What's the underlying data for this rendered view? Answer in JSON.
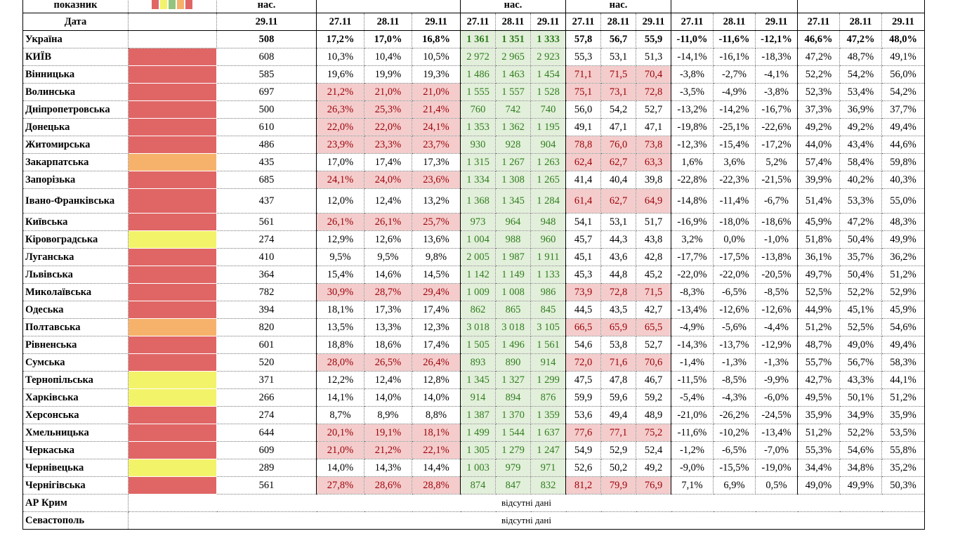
{
  "header": {
    "labels": [
      "показник",
      "нас.",
      "нас.",
      "нас."
    ],
    "date_label": "Дата",
    "date": "29.11",
    "dates": [
      "27.11",
      "28.11",
      "29.11"
    ]
  },
  "rows": [
    {
      "name": "Україна",
      "value": "508",
      "cells": [
        "17,2%",
        "17,0%",
        "16,8%",
        "1 361",
        "1 351",
        "1 333",
        "57,8",
        "56,7",
        "55,9",
        "-11,0%",
        "-11,6%",
        "-12,1%",
        "46,6%",
        "47,2%",
        "48,0%"
      ],
      "bold": true,
      "highlight": [
        false,
        true,
        false,
        false,
        false
      ]
    },
    {
      "name": "КИЇВ",
      "value": "608",
      "cells": [
        "10,3%",
        "10,4%",
        "10,5%",
        "2 972",
        "2 965",
        "2 923",
        "55,3",
        "53,1",
        "51,3",
        "-14,1%",
        "-16,1%",
        "-18,3%",
        "47,2%",
        "48,7%",
        "49,1%"
      ],
      "status": "#e06666",
      "highlight": [
        false,
        true,
        false,
        false,
        false
      ]
    },
    {
      "name": "Вінницька",
      "value": "585",
      "cells": [
        "19,6%",
        "19,9%",
        "19,3%",
        "1 486",
        "1 463",
        "1 454",
        "71,1",
        "71,5",
        "70,4",
        "-3,8%",
        "-2,7%",
        "-4,1%",
        "52,2%",
        "54,2%",
        "56,0%"
      ],
      "status": "#e06666",
      "highlight": [
        false,
        true,
        true,
        false,
        false
      ]
    },
    {
      "name": "Волинська",
      "value": "697",
      "cells": [
        "21,2%",
        "21,0%",
        "21,0%",
        "1 555",
        "1 557",
        "1 528",
        "75,1",
        "73,1",
        "72,8",
        "-3,5%",
        "-4,9%",
        "-3,8%",
        "52,3%",
        "53,4%",
        "54,2%"
      ],
      "status": "#e06666",
      "highlight": [
        true,
        true,
        true,
        false,
        false
      ]
    },
    {
      "name": "Дніпропетровська",
      "value": "500",
      "cells": [
        "26,3%",
        "25,3%",
        "21,4%",
        "760",
        "742",
        "740",
        "56,0",
        "54,2",
        "52,7",
        "-13,2%",
        "-14,2%",
        "-16,7%",
        "37,3%",
        "36,9%",
        "37,7%"
      ],
      "status": "#e06666",
      "highlight": [
        true,
        true,
        false,
        false,
        false
      ]
    },
    {
      "name": "Донецька",
      "value": "610",
      "cells": [
        "22,0%",
        "22,0%",
        "24,1%",
        "1 353",
        "1 362",
        "1 195",
        "49,1",
        "47,1",
        "47,1",
        "-19,8%",
        "-25,1%",
        "-22,6%",
        "49,2%",
        "49,2%",
        "49,4%"
      ],
      "status": "#e06666",
      "highlight": [
        true,
        true,
        false,
        false,
        false
      ]
    },
    {
      "name": "Житомирська",
      "value": "486",
      "cells": [
        "23,9%",
        "23,3%",
        "23,7%",
        "930",
        "928",
        "904",
        "78,8",
        "76,0",
        "73,8",
        "-12,3%",
        "-15,4%",
        "-17,2%",
        "44,0%",
        "43,4%",
        "44,6%"
      ],
      "status": "#e06666",
      "highlight": [
        true,
        true,
        true,
        false,
        false
      ]
    },
    {
      "name": "Закарпатська",
      "value": "435",
      "cells": [
        "17,0%",
        "17,4%",
        "17,3%",
        "1 315",
        "1 267",
        "1 263",
        "62,4",
        "62,7",
        "63,3",
        "1,6%",
        "3,6%",
        "5,2%",
        "57,4%",
        "58,4%",
        "59,8%"
      ],
      "status": "#f6b26b",
      "highlight": [
        false,
        true,
        true,
        false,
        false
      ]
    },
    {
      "name": "Запорізька",
      "value": "685",
      "cells": [
        "24,1%",
        "24,0%",
        "23,6%",
        "1 334",
        "1 308",
        "1 265",
        "41,4",
        "40,4",
        "39,8",
        "-22,8%",
        "-22,3%",
        "-21,5%",
        "39,9%",
        "40,2%",
        "40,3%"
      ],
      "status": "#e06666",
      "highlight": [
        true,
        true,
        false,
        false,
        false
      ]
    },
    {
      "name": "Івано-Франківська",
      "value": "437",
      "cells": [
        "12,0%",
        "12,4%",
        "13,2%",
        "1 368",
        "1 345",
        "1 284",
        "61,4",
        "62,7",
        "64,9",
        "-14,8%",
        "-11,4%",
        "-6,7%",
        "51,4%",
        "53,3%",
        "55,0%"
      ],
      "status": "#e06666",
      "highlight": [
        false,
        true,
        true,
        false,
        false
      ]
    },
    {
      "name": "Київська",
      "value": "561",
      "cells": [
        "26,1%",
        "26,1%",
        "25,7%",
        "973",
        "964",
        "948",
        "54,1",
        "53,1",
        "51,7",
        "-16,9%",
        "-18,0%",
        "-18,6%",
        "45,9%",
        "47,2%",
        "48,3%"
      ],
      "status": "#e06666",
      "highlight": [
        true,
        true,
        false,
        false,
        false
      ]
    },
    {
      "name": "Кіровоградська",
      "value": "274",
      "cells": [
        "12,9%",
        "12,6%",
        "13,6%",
        "1 004",
        "988",
        "960",
        "45,7",
        "44,3",
        "43,8",
        "3,2%",
        "0,0%",
        "-1,0%",
        "51,8%",
        "50,4%",
        "49,9%"
      ],
      "status": "#f3f36a",
      "highlight": [
        false,
        true,
        false,
        false,
        false
      ]
    },
    {
      "name": "Луганська",
      "value": "410",
      "cells": [
        "9,5%",
        "9,5%",
        "9,8%",
        "2 005",
        "1 987",
        "1 911",
        "45,1",
        "43,6",
        "42,8",
        "-17,7%",
        "-17,5%",
        "-13,8%",
        "36,1%",
        "35,7%",
        "36,2%"
      ],
      "status": "#e06666",
      "highlight": [
        false,
        true,
        false,
        false,
        false
      ]
    },
    {
      "name": "Львівська",
      "value": "364",
      "cells": [
        "15,4%",
        "14,6%",
        "14,5%",
        "1 142",
        "1 149",
        "1 133",
        "45,3",
        "44,8",
        "45,2",
        "-22,0%",
        "-22,0%",
        "-20,5%",
        "49,7%",
        "50,4%",
        "51,2%"
      ],
      "status": "#e06666",
      "highlight": [
        false,
        true,
        false,
        false,
        false
      ]
    },
    {
      "name": "Миколаївська",
      "value": "782",
      "cells": [
        "30,9%",
        "28,7%",
        "29,4%",
        "1 009",
        "1 008",
        "986",
        "73,9",
        "72,8",
        "71,5",
        "-8,3%",
        "-6,5%",
        "-8,5%",
        "52,5%",
        "52,2%",
        "52,9%"
      ],
      "status": "#e06666",
      "highlight": [
        true,
        true,
        true,
        false,
        false
      ]
    },
    {
      "name": "Одеська",
      "value": "394",
      "cells": [
        "18,1%",
        "17,3%",
        "17,4%",
        "862",
        "865",
        "845",
        "44,5",
        "43,5",
        "42,7",
        "-13,4%",
        "-12,6%",
        "-12,6%",
        "44,9%",
        "45,1%",
        "45,9%"
      ],
      "status": "#e06666",
      "highlight": [
        false,
        true,
        false,
        false,
        false
      ]
    },
    {
      "name": "Полтавська",
      "value": "820",
      "cells": [
        "13,5%",
        "13,3%",
        "12,3%",
        "3 018",
        "3 018",
        "3 105",
        "66,5",
        "65,9",
        "65,5",
        "-4,9%",
        "-5,6%",
        "-4,4%",
        "51,2%",
        "52,5%",
        "54,6%"
      ],
      "status": "#f6b26b",
      "highlight": [
        false,
        true,
        true,
        false,
        false
      ]
    },
    {
      "name": "Рівненська",
      "value": "601",
      "cells": [
        "18,8%",
        "18,6%",
        "17,4%",
        "1 505",
        "1 496",
        "1 561",
        "54,6",
        "53,8",
        "52,7",
        "-14,3%",
        "-13,7%",
        "-12,9%",
        "48,7%",
        "49,0%",
        "49,4%"
      ],
      "status": "#e06666",
      "highlight": [
        false,
        true,
        false,
        false,
        false
      ]
    },
    {
      "name": "Сумська",
      "value": "520",
      "cells": [
        "28,0%",
        "26,5%",
        "26,4%",
        "893",
        "890",
        "914",
        "72,0",
        "71,6",
        "70,6",
        "-1,4%",
        "-1,3%",
        "-1,3%",
        "55,7%",
        "56,7%",
        "58,3%"
      ],
      "status": "#e06666",
      "highlight": [
        true,
        true,
        true,
        false,
        false
      ]
    },
    {
      "name": "Тернопільська",
      "value": "371",
      "cells": [
        "12,2%",
        "12,4%",
        "12,8%",
        "1 345",
        "1 327",
        "1 299",
        "47,5",
        "47,8",
        "46,7",
        "-11,5%",
        "-8,5%",
        "-9,9%",
        "42,7%",
        "43,3%",
        "44,1%"
      ],
      "status": "#f3f36a",
      "highlight": [
        false,
        true,
        false,
        false,
        false
      ]
    },
    {
      "name": "Харківська",
      "value": "266",
      "cells": [
        "14,1%",
        "14,0%",
        "14,0%",
        "914",
        "894",
        "876",
        "59,9",
        "59,6",
        "59,2",
        "-5,4%",
        "-4,3%",
        "-6,0%",
        "49,5%",
        "50,1%",
        "51,2%"
      ],
      "status": "#f3f36a",
      "highlight": [
        false,
        true,
        false,
        false,
        false
      ]
    },
    {
      "name": "Херсонська",
      "value": "274",
      "cells": [
        "8,7%",
        "8,9%",
        "8,8%",
        "1 387",
        "1 370",
        "1 359",
        "53,6",
        "49,4",
        "48,9",
        "-21,0%",
        "-26,2%",
        "-24,5%",
        "35,9%",
        "34,9%",
        "35,9%"
      ],
      "status": "#e06666",
      "highlight": [
        false,
        true,
        false,
        false,
        false
      ]
    },
    {
      "name": "Хмельницька",
      "value": "644",
      "cells": [
        "20,1%",
        "19,1%",
        "18,1%",
        "1 499",
        "1 544",
        "1 637",
        "77,6",
        "77,1",
        "75,2",
        "-11,6%",
        "-10,2%",
        "-13,4%",
        "51,2%",
        "52,2%",
        "53,5%"
      ],
      "status": "#e06666",
      "highlight": [
        true,
        true,
        true,
        false,
        false
      ]
    },
    {
      "name": "Черкаська",
      "value": "609",
      "cells": [
        "21,0%",
        "21,2%",
        "22,1%",
        "1 305",
        "1 279",
        "1 247",
        "54,9",
        "52,9",
        "52,4",
        "-1,2%",
        "-6,5%",
        "-7,0%",
        "55,3%",
        "54,6%",
        "55,8%"
      ],
      "status": "#e06666",
      "highlight": [
        true,
        true,
        false,
        false,
        false
      ]
    },
    {
      "name": "Чернівецька",
      "value": "289",
      "cells": [
        "14,0%",
        "14,3%",
        "14,4%",
        "1 003",
        "979",
        "971",
        "52,6",
        "50,2",
        "49,2",
        "-9,0%",
        "-15,5%",
        "-19,0%",
        "34,4%",
        "34,8%",
        "35,2%"
      ],
      "status": "#f3f36a",
      "highlight": [
        false,
        true,
        false,
        false,
        false
      ]
    },
    {
      "name": "Чернігівська",
      "value": "561",
      "cells": [
        "27,8%",
        "28,6%",
        "28,8%",
        "874",
        "847",
        "832",
        "81,2",
        "79,9",
        "76,9",
        "7,1%",
        "6,9%",
        "0,5%",
        "49,0%",
        "49,9%",
        "50,3%"
      ],
      "status": "#e06666",
      "highlight": [
        true,
        true,
        true,
        false,
        false
      ]
    },
    {
      "name": "АР Крим",
      "note": "відсутні дані"
    },
    {
      "name": "Севастополь",
      "note": "відсутні дані"
    }
  ]
}
